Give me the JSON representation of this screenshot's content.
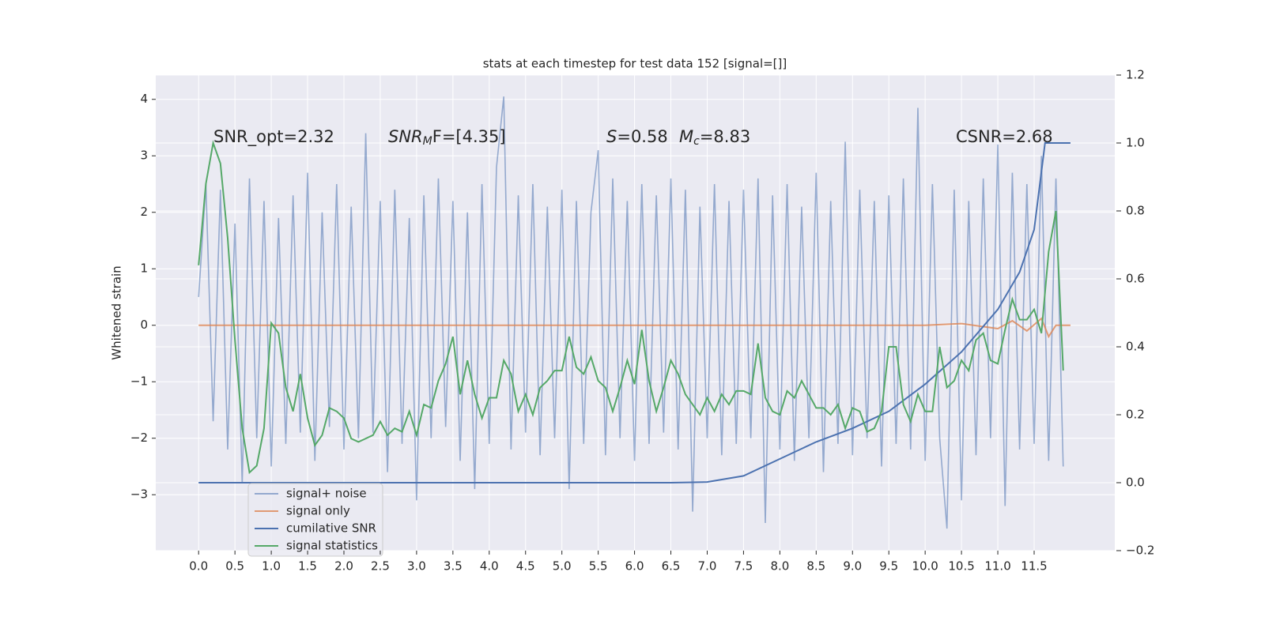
{
  "chart_data": {
    "type": "line",
    "title": "stats at each timestep for test data 152 [signal=[]]",
    "ylabel": "Whitened strain",
    "annotations": {
      "snr_opt": "SNR_opt=2.32",
      "snr_mf": {
        "base": "SNR",
        "sub": "M",
        "rest": "F=[4.35]"
      },
      "s": {
        "base": "S",
        "rest": "=0.58"
      },
      "mc": {
        "base": "M",
        "sub": "c",
        "rest": "=8.83"
      },
      "csnr": "CSNR=2.68"
    },
    "xlim": [
      -0.59,
      12.61
    ],
    "xticks": [
      {
        "value": 0,
        "label": "0.0"
      },
      0.5,
      {
        "value": 1,
        "label": "1.0"
      },
      1.5,
      {
        "value": 2,
        "label": "2.0"
      },
      2.5,
      {
        "value": 3,
        "label": "3.0"
      },
      3.5,
      {
        "value": 4,
        "label": "4.0"
      },
      4.5,
      {
        "value": 5,
        "label": "5.0"
      },
      5.5,
      {
        "value": 6,
        "label": "6.0"
      },
      6.5,
      {
        "value": 7,
        "label": "7.0"
      },
      7.5,
      {
        "value": 8,
        "label": "8.0"
      },
      8.5,
      {
        "value": 9,
        "label": "9.0"
      },
      9.5,
      {
        "value": 10,
        "label": "10.0"
      },
      10.5,
      {
        "value": 11,
        "label": "11.0"
      },
      11.5
    ],
    "ylim": [
      -3.99,
      4.43
    ],
    "yticks": [
      {
        "value": -3,
        "label": "−3"
      },
      {
        "value": -2,
        "label": "−2"
      },
      {
        "value": -1,
        "label": "−1"
      },
      0,
      1,
      2,
      3,
      4
    ],
    "y2lim": [
      -0.2,
      1.2
    ],
    "y2ticks": [
      {
        "value": -0.2,
        "label": "−0.2"
      },
      {
        "value": 0,
        "label": "0.0"
      },
      0.2,
      0.4,
      0.6,
      0.8,
      {
        "value": 1,
        "label": "1.0"
      },
      1.2
    ],
    "grid": true,
    "legend_loc": "lower left",
    "series": [
      {
        "name": "signal+ noise",
        "color": "#4c72b0",
        "opacity": 0.55,
        "x": [
          0,
          0.1,
          0.2,
          0.3,
          0.4,
          0.5,
          0.6,
          0.7,
          0.8,
          0.9,
          1,
          1.1,
          1.2,
          1.3,
          1.4,
          1.5,
          1.6,
          1.7,
          1.8,
          1.9,
          2,
          2.1,
          2.2,
          2.3,
          2.4,
          2.5,
          2.6,
          2.7,
          2.8,
          2.9,
          3,
          3.1,
          3.2,
          3.3,
          3.4,
          3.5,
          3.6,
          3.7,
          3.8,
          3.9,
          4,
          4.1,
          4.2,
          4.3,
          4.4,
          4.5,
          4.6,
          4.7,
          4.8,
          4.9,
          5,
          5.1,
          5.2,
          5.3,
          5.4,
          5.5,
          5.6,
          5.7,
          5.8,
          5.9,
          6,
          6.1,
          6.2,
          6.3,
          6.4,
          6.5,
          6.6,
          6.7,
          6.8,
          6.9,
          7,
          7.1,
          7.2,
          7.3,
          7.4,
          7.5,
          7.6,
          7.7,
          7.8,
          7.9,
          8,
          8.1,
          8.2,
          8.3,
          8.4,
          8.5,
          8.6,
          8.7,
          8.8,
          8.9,
          9,
          9.1,
          9.2,
          9.3,
          9.4,
          9.5,
          9.6,
          9.7,
          9.8,
          9.9,
          10,
          10.1,
          10.2,
          10.3,
          10.4,
          10.5,
          10.6,
          10.7,
          10.8,
          10.9,
          11,
          11.1,
          11.2,
          11.3,
          11.4,
          11.5,
          11.6,
          11.7,
          11.8,
          11.9
        ],
        "values": [
          0.5,
          2.5,
          -1.7,
          2.4,
          -2.2,
          1.8,
          -2.8,
          2.6,
          -2.0,
          2.2,
          -2.5,
          1.9,
          -2.1,
          2.3,
          -1.9,
          2.7,
          -2.4,
          2.0,
          -1.8,
          2.5,
          -2.2,
          2.1,
          -2.0,
          3.4,
          -1.9,
          2.2,
          -2.6,
          2.4,
          -2.1,
          1.9,
          -3.1,
          2.3,
          -2.0,
          2.6,
          -1.8,
          2.2,
          -2.4,
          2.0,
          -2.9,
          2.5,
          -2.1,
          2.8,
          4.05,
          -2.2,
          2.3,
          -1.9,
          2.5,
          -2.3,
          2.1,
          -2.0,
          2.4,
          -2.9,
          2.2,
          -2.1,
          2.0,
          3.1,
          -2.3,
          2.6,
          -2.0,
          2.2,
          -2.4,
          2.5,
          -2.1,
          2.3,
          -1.9,
          2.6,
          -2.2,
          2.4,
          -3.3,
          2.1,
          -2.0,
          2.5,
          -2.3,
          2.2,
          -2.1,
          2.4,
          -2.0,
          2.6,
          -3.5,
          2.3,
          -2.2,
          2.5,
          -2.4,
          2.1,
          -2.0,
          2.7,
          -2.6,
          2.2,
          -2.1,
          3.25,
          -2.3,
          2.4,
          -2.0,
          2.2,
          -2.5,
          2.3,
          -2.1,
          2.6,
          -2.2,
          3.85,
          -2.4,
          2.5,
          -2.0,
          -3.6,
          2.4,
          -3.1,
          2.2,
          -2.3,
          2.6,
          -2.0,
          3.2,
          -3.2,
          2.7,
          -2.2,
          2.5,
          -2.1,
          3.0,
          -2.4,
          2.6,
          -2.5
        ]
      },
      {
        "name": "signal only",
        "color": "#dd8452",
        "opacity": 0.8,
        "x": [
          0,
          10.0,
          10.5,
          11.0,
          11.2,
          11.4,
          11.6,
          11.7,
          11.8,
          12.0
        ],
        "values": [
          0,
          0,
          0.03,
          -0.06,
          0.08,
          -0.1,
          0.12,
          -0.2,
          0,
          0
        ]
      },
      {
        "name": "cumilative SNR",
        "color": "#4c72b0",
        "opacity": 1,
        "axis": "y2",
        "x": [
          0,
          6.5,
          7.0,
          7.5,
          8.0,
          8.5,
          9.0,
          9.5,
          10.0,
          10.5,
          11.0,
          11.3,
          11.5,
          11.65,
          12.0
        ],
        "values": [
          0,
          0,
          0.002,
          0.02,
          0.07,
          0.12,
          0.16,
          0.21,
          0.29,
          0.385,
          0.51,
          0.62,
          0.745,
          1.0,
          1.0
        ]
      },
      {
        "name": "signal statistics",
        "color": "#55a868",
        "opacity": 1,
        "axis": "y2",
        "x": [
          0,
          0.1,
          0.2,
          0.3,
          0.4,
          0.5,
          0.6,
          0.7,
          0.8,
          0.9,
          1,
          1.1,
          1.2,
          1.3,
          1.4,
          1.5,
          1.6,
          1.7,
          1.8,
          1.9,
          2,
          2.1,
          2.2,
          2.3,
          2.4,
          2.5,
          2.6,
          2.7,
          2.8,
          2.9,
          3,
          3.1,
          3.2,
          3.3,
          3.4,
          3.5,
          3.6,
          3.7,
          3.8,
          3.9,
          4,
          4.1,
          4.2,
          4.3,
          4.4,
          4.5,
          4.6,
          4.7,
          4.8,
          4.9,
          5,
          5.1,
          5.2,
          5.3,
          5.4,
          5.5,
          5.6,
          5.7,
          5.8,
          5.9,
          6,
          6.1,
          6.2,
          6.3,
          6.4,
          6.5,
          6.6,
          6.7,
          6.8,
          6.9,
          7,
          7.1,
          7.2,
          7.3,
          7.4,
          7.5,
          7.6,
          7.7,
          7.8,
          7.9,
          8,
          8.1,
          8.2,
          8.3,
          8.4,
          8.5,
          8.6,
          8.7,
          8.8,
          8.9,
          9,
          9.1,
          9.2,
          9.3,
          9.4,
          9.5,
          9.6,
          9.7,
          9.8,
          9.9,
          10,
          10.1,
          10.2,
          10.3,
          10.4,
          10.5,
          10.6,
          10.7,
          10.8,
          10.9,
          11,
          11.1,
          11.2,
          11.3,
          11.4,
          11.5,
          11.6,
          11.7,
          11.8,
          11.9
        ],
        "values": [
          0.64,
          0.88,
          1.0,
          0.94,
          0.72,
          0.42,
          0.16,
          0.03,
          0.05,
          0.16,
          0.47,
          0.44,
          0.28,
          0.21,
          0.32,
          0.19,
          0.11,
          0.14,
          0.22,
          0.21,
          0.19,
          0.13,
          0.12,
          0.13,
          0.14,
          0.18,
          0.14,
          0.16,
          0.15,
          0.21,
          0.14,
          0.23,
          0.22,
          0.3,
          0.35,
          0.43,
          0.26,
          0.36,
          0.26,
          0.19,
          0.25,
          0.25,
          0.36,
          0.32,
          0.21,
          0.26,
          0.2,
          0.28,
          0.3,
          0.33,
          0.33,
          0.43,
          0.34,
          0.32,
          0.37,
          0.3,
          0.28,
          0.21,
          0.28,
          0.36,
          0.29,
          0.45,
          0.3,
          0.21,
          0.28,
          0.36,
          0.32,
          0.26,
          0.23,
          0.2,
          0.25,
          0.21,
          0.26,
          0.23,
          0.27,
          0.27,
          0.26,
          0.41,
          0.25,
          0.21,
          0.2,
          0.27,
          0.25,
          0.3,
          0.26,
          0.22,
          0.22,
          0.2,
          0.23,
          0.16,
          0.22,
          0.21,
          0.15,
          0.16,
          0.21,
          0.4,
          0.4,
          0.23,
          0.18,
          0.26,
          0.21,
          0.21,
          0.4,
          0.28,
          0.3,
          0.36,
          0.33,
          0.42,
          0.44,
          0.36,
          0.35,
          0.45,
          0.54,
          0.48,
          0.48,
          0.51,
          0.44,
          0.68,
          0.8,
          0.33
        ]
      }
    ]
  }
}
